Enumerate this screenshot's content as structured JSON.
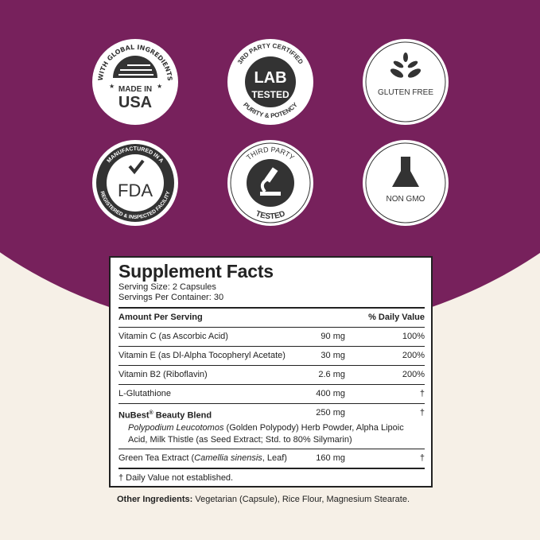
{
  "colors": {
    "purple": "#77215c",
    "cream": "#f6f0e7",
    "badge_dark": "#333333"
  },
  "badges": [
    {
      "top": "WITH GLOBAL INGREDIENTS",
      "line1": "MADE IN",
      "line2": "USA",
      "icon": "us-flag-icon"
    },
    {
      "top": "3RD PARTY CERTIFIED",
      "line1": "LAB",
      "line2": "TESTED",
      "bottom": "PURITY & POTENCY"
    },
    {
      "line1": "GLUTEN FREE",
      "icon": "wheat-icon"
    },
    {
      "top": "MANUFACTURED IN A",
      "bottom": "REGISTERED & INSPECTED FACILITY",
      "line1": "FDA",
      "icon": "checkmark-icon"
    },
    {
      "top": "THIRD PARTY",
      "bottom": "TESTED",
      "icon": "microscope-icon"
    },
    {
      "line1": "NON GMO",
      "icon": "flask-icon"
    }
  ],
  "facts": {
    "title": "Supplement Facts",
    "serving_size": "Serving Size: 2 Capsules",
    "servings": "Servings Per Container: 30",
    "header_amount": "Amount Per Serving",
    "header_dv": "% Daily Value",
    "rows": [
      {
        "name": "Vitamin C (as Ascorbic Acid)",
        "amount": "90 mg",
        "dv": "100%"
      },
      {
        "name": "Vitamin E (as Dl-Alpha Tocopheryl Acetate)",
        "amount": "30 mg",
        "dv": "200%"
      },
      {
        "name": "Vitamin B2 (Riboflavin)",
        "amount": "2.6 mg",
        "dv": "200%"
      },
      {
        "name": "L-Glutathione",
        "amount": "400 mg",
        "dv": "†"
      },
      {
        "name": "NuBest",
        "sup": "®",
        "name2": " Beauty Blend",
        "amount": "250 mg",
        "dv": "†"
      },
      {
        "name": "Green Tea Extract (",
        "italic": "Camellia sinensis",
        "name2": ", Leaf)",
        "amount": "160 mg",
        "dv": "†"
      }
    ],
    "blend_italic": "Polypodium Leucotomos",
    "blend_text": " (Golden Polypody) Herb Powder, Alpha Lipoic Acid, Milk Thistle (as Seed Extract; Std. to 80% Silymarin)",
    "footnote": "† Daily Value not established.",
    "other_label": "Other Ingredients:",
    "other_text": " Vegetarian (Capsule), Rice Flour, Magnesium Stearate."
  }
}
